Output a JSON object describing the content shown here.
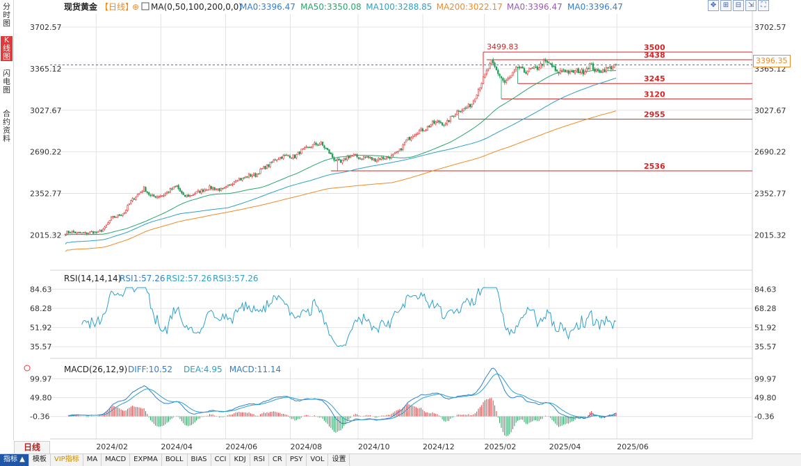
{
  "sidebar": {
    "tabs": [
      {
        "label": "分时图",
        "active": false
      },
      {
        "label": "K线图",
        "active": true
      },
      {
        "label": "闪电图",
        "active": false
      },
      {
        "label": "合约资料",
        "active": false
      }
    ]
  },
  "header": {
    "title": "现货黄金",
    "period": "【日线】",
    "ma_params": "MA(0,50,100,200,0,0)",
    "ma_values": [
      {
        "text": "MA0:3396.47",
        "color": "#2f7fd0"
      },
      {
        "text": "MA50:3350.08",
        "color": "#26a66b"
      },
      {
        "text": "MA100:3288.85",
        "color": "#2ba0c8"
      },
      {
        "text": "MA200:3022.17",
        "color": "#f08a24"
      },
      {
        "text": "MA0:3396.47",
        "color": "#9b59b6"
      },
      {
        "text": "MA0:3396.47",
        "color": "#2f7fd0"
      }
    ]
  },
  "toolbar": {
    "icons": [
      "move-icon",
      "zoom-in-icon",
      "zoom-out-icon",
      "expand-icon",
      "fullscreen-icon"
    ]
  },
  "current_price": "3396.35",
  "bottom": {
    "period_button": "日线",
    "tabs": [
      "指标",
      "模板",
      "VIP指标",
      "MA",
      "MACD",
      "EXPMA",
      "BOLL",
      "BIAS",
      "CCI",
      "KDJ",
      "RSI",
      "CR",
      "PSY",
      "VOL",
      "设置"
    ]
  },
  "colors": {
    "up": "#e03a3a",
    "down": "#1f9e57",
    "level": "#d42424",
    "grid": "#e3e3e3"
  },
  "chart_data": [
    {
      "type": "candlestick",
      "name": "main",
      "title": "现货黄金",
      "ylim": [
        1910,
        3810
      ],
      "y_ticks": [
        "3702.57",
        "3365.12",
        "3027.67",
        "2690.22",
        "2352.77",
        "2015.32"
      ],
      "x_ticks": [
        "2024/02",
        "2024/04",
        "2024/06",
        "2024/08",
        "2024/10",
        "2024/12",
        "2025/02",
        "2025/04",
        "2025/06"
      ],
      "anchors": [
        [
          0,
          2035
        ],
        [
          4,
          2040
        ],
        [
          8,
          2030
        ],
        [
          12,
          2028
        ],
        [
          16,
          2040
        ],
        [
          20,
          2035
        ],
        [
          24,
          2070
        ],
        [
          28,
          2150
        ],
        [
          32,
          2170
        ],
        [
          36,
          2200
        ],
        [
          40,
          2290
        ],
        [
          44,
          2340
        ],
        [
          48,
          2395
        ],
        [
          52,
          2330
        ],
        [
          56,
          2330
        ],
        [
          60,
          2340
        ],
        [
          64,
          2380
        ],
        [
          68,
          2410
        ],
        [
          72,
          2330
        ],
        [
          76,
          2335
        ],
        [
          80,
          2360
        ],
        [
          84,
          2380
        ],
        [
          88,
          2400
        ],
        [
          92,
          2390
        ],
        [
          96,
          2380
        ],
        [
          100,
          2415
        ],
        [
          104,
          2470
        ],
        [
          108,
          2470
        ],
        [
          112,
          2500
        ],
        [
          116,
          2500
        ],
        [
          120,
          2550
        ],
        [
          124,
          2580
        ],
        [
          128,
          2630
        ],
        [
          132,
          2650
        ],
        [
          136,
          2660
        ],
        [
          140,
          2650
        ],
        [
          144,
          2700
        ],
        [
          148,
          2720
        ],
        [
          152,
          2750
        ],
        [
          156,
          2755
        ],
        [
          160,
          2700
        ],
        [
          164,
          2630
        ],
        [
          168,
          2600
        ],
        [
          172,
          2650
        ],
        [
          176,
          2660
        ],
        [
          180,
          2640
        ],
        [
          184,
          2650
        ],
        [
          188,
          2625
        ],
        [
          192,
          2640
        ],
        [
          196,
          2640
        ],
        [
          200,
          2660
        ],
        [
          204,
          2700
        ],
        [
          208,
          2780
        ],
        [
          212,
          2830
        ],
        [
          216,
          2860
        ],
        [
          220,
          2880
        ],
        [
          224,
          2920
        ],
        [
          228,
          2935
        ],
        [
          232,
          2910
        ],
        [
          236,
          2980
        ],
        [
          240,
          3030
        ],
        [
          244,
          3040
        ],
        [
          248,
          3080
        ],
        [
          252,
          3200
        ],
        [
          256,
          3310
        ],
        [
          260,
          3420
        ],
        [
          264,
          3330
        ],
        [
          268,
          3250
        ],
        [
          272,
          3300
        ],
        [
          276,
          3380
        ],
        [
          280,
          3340
        ],
        [
          284,
          3360
        ],
        [
          288,
          3370
        ],
        [
          292,
          3420
        ],
        [
          296,
          3400
        ],
        [
          300,
          3330
        ],
        [
          304,
          3360
        ],
        [
          308,
          3330
        ],
        [
          312,
          3350
        ],
        [
          316,
          3340
        ],
        [
          320,
          3400
        ],
        [
          324,
          3340
        ],
        [
          328,
          3355
        ],
        [
          332,
          3370
        ],
        [
          336,
          3396
        ]
      ],
      "ma50_end": 3350.08,
      "ma100_end": 3288.85,
      "ma200_end": 3022.17,
      "last_close": 3396.35,
      "peak_label": "3499.83",
      "levels": [
        {
          "value": 3500,
          "label": "3500",
          "start": 255
        },
        {
          "value": 3438,
          "label": "3438",
          "start": 257
        },
        {
          "value": 3245,
          "label": "3245",
          "start": 276
        },
        {
          "value": 3120,
          "label": "3120",
          "start": 266
        },
        {
          "value": 2955,
          "label": "2955",
          "start": 240
        },
        {
          "value": 2536,
          "label": "2536",
          "start": 162
        }
      ]
    },
    {
      "type": "line",
      "name": "RSI",
      "params": "RSI(14,14,14)",
      "legend": [
        {
          "text": "RSI1:57.26",
          "color": "#2f7fd0"
        },
        {
          "text": "RSI2:57.26",
          "color": "#2ba0c8"
        },
        {
          "text": "RSI3:57.26",
          "color": "#2ba0c8"
        }
      ],
      "y_ticks": [
        "84.63",
        "68.28",
        "51.92",
        "35.57"
      ],
      "ylim": [
        28,
        92
      ],
      "last_value": 57.26
    },
    {
      "type": "bar",
      "name": "MACD",
      "params": "MACD(26,12,9)",
      "legend": [
        {
          "text": "DIFF:10.52",
          "color": "#2f7fd0"
        },
        {
          "text": "DEA:4.95",
          "color": "#2ba0c8"
        },
        {
          "text": "MACD:11.14",
          "color": "#2f7fd0"
        }
      ],
      "y_ticks": [
        "99.97",
        "49.80",
        "-0.36"
      ],
      "ylim": [
        -60,
        110
      ]
    }
  ]
}
